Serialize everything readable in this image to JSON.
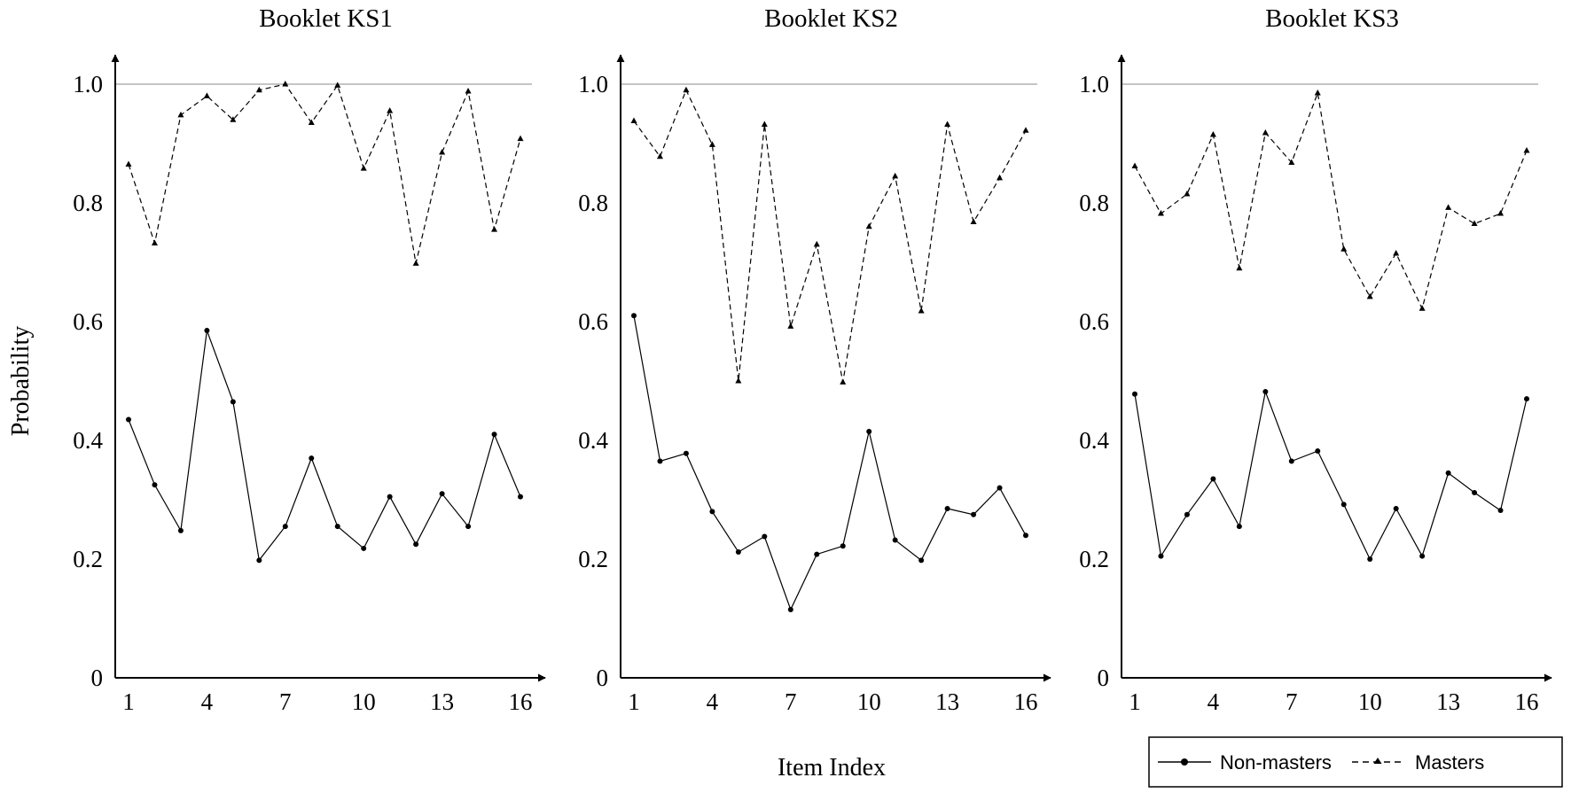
{
  "ylabel": "Probability",
  "xlabel": "Item  Index",
  "legend": {
    "placement": "bottom-right",
    "entries": [
      {
        "label": "Non-masters",
        "marker": "circle",
        "line": "solid"
      },
      {
        "label": "Masters",
        "marker": "triangle",
        "line": "dashed"
      }
    ]
  },
  "chart_data": [
    {
      "type": "line",
      "title": "Booklet KS1",
      "x": [
        1,
        2,
        3,
        4,
        5,
        6,
        7,
        8,
        9,
        10,
        11,
        12,
        13,
        14,
        15,
        16
      ],
      "xticks": [
        1,
        4,
        7,
        10,
        13,
        16
      ],
      "ylim": [
        0,
        1.0
      ],
      "yticks": [
        "0",
        "0.2",
        "0.4",
        "0.6",
        "0.8",
        "1.0"
      ],
      "reference_line": 1.0,
      "series": [
        {
          "name": "Non-masters",
          "values": [
            0.435,
            0.325,
            0.248,
            0.585,
            0.465,
            0.198,
            0.255,
            0.37,
            0.255,
            0.218,
            0.305,
            0.225,
            0.31,
            0.255,
            0.41,
            0.305
          ]
        },
        {
          "name": "Masters",
          "values": [
            0.865,
            0.732,
            0.948,
            0.98,
            0.94,
            0.99,
            1.0,
            0.935,
            0.998,
            0.858,
            0.955,
            0.698,
            0.885,
            0.988,
            0.755,
            0.908
          ]
        }
      ]
    },
    {
      "type": "line",
      "title": "Booklet KS2",
      "x": [
        1,
        2,
        3,
        4,
        5,
        6,
        7,
        8,
        9,
        10,
        11,
        12,
        13,
        14,
        15,
        16
      ],
      "xticks": [
        1,
        4,
        7,
        10,
        13,
        16
      ],
      "ylim": [
        0,
        1.0
      ],
      "yticks": [
        "0",
        "0.2",
        "0.4",
        "0.6",
        "0.8",
        "1.0"
      ],
      "reference_line": 1.0,
      "series": [
        {
          "name": "Non-masters",
          "values": [
            0.61,
            0.365,
            0.378,
            0.28,
            0.212,
            0.238,
            0.115,
            0.208,
            0.222,
            0.415,
            0.232,
            0.198,
            0.285,
            0.275,
            0.32,
            0.24
          ]
        },
        {
          "name": "Masters",
          "values": [
            0.938,
            0.878,
            0.99,
            0.898,
            0.5,
            0.932,
            0.592,
            0.73,
            0.498,
            0.76,
            0.845,
            0.618,
            0.932,
            0.768,
            0.842,
            0.922
          ]
        }
      ]
    },
    {
      "type": "line",
      "title": "Booklet KS3",
      "x": [
        1,
        2,
        3,
        4,
        5,
        6,
        7,
        8,
        9,
        10,
        11,
        12,
        13,
        14,
        15,
        16
      ],
      "xticks": [
        1,
        4,
        7,
        10,
        13,
        16
      ],
      "ylim": [
        0,
        1.0
      ],
      "yticks": [
        "0",
        "0.2",
        "0.4",
        "0.6",
        "0.8",
        "1.0"
      ],
      "reference_line": 1.0,
      "series": [
        {
          "name": "Non-masters",
          "values": [
            0.478,
            0.205,
            0.275,
            0.335,
            0.255,
            0.482,
            0.365,
            0.382,
            0.292,
            0.2,
            0.285,
            0.205,
            0.345,
            0.312,
            0.282,
            0.47
          ]
        },
        {
          "name": "Masters",
          "values": [
            0.862,
            0.782,
            0.815,
            0.915,
            0.69,
            0.918,
            0.868,
            0.985,
            0.722,
            0.642,
            0.715,
            0.622,
            0.792,
            0.765,
            0.782,
            0.888
          ]
        }
      ]
    }
  ]
}
